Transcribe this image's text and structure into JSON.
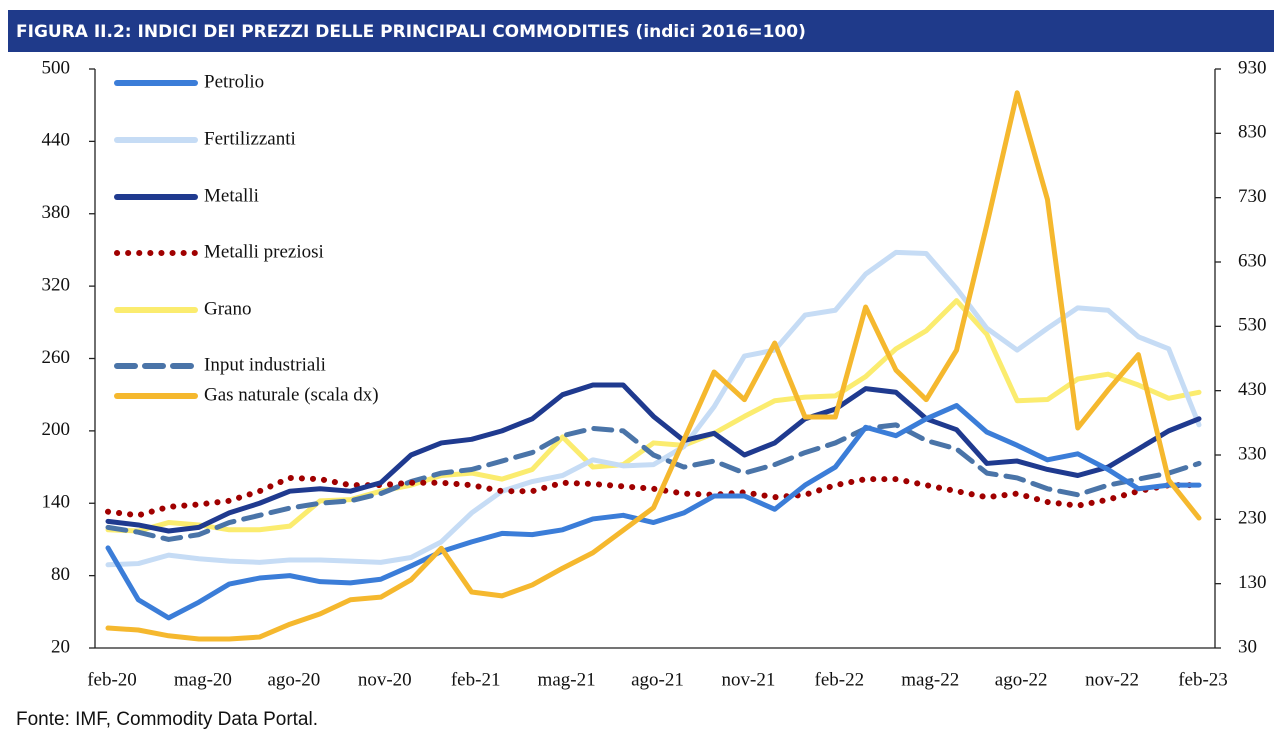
{
  "chart_data": {
    "type": "line",
    "title": "FIGURA II.2: INDICI DEI PREZZI DELLE PRINCIPALI COMMODITIES (indici 2016=100)",
    "source": "Fonte: IMF, Commodity Data Portal.",
    "categories": [
      "feb-20",
      null,
      null,
      "mag-20",
      null,
      null,
      "ago-20",
      null,
      null,
      "nov-20",
      null,
      null,
      "feb-21",
      null,
      null,
      "mag-21",
      null,
      null,
      "ago-21",
      null,
      null,
      "nov-21",
      null,
      null,
      "feb-22",
      null,
      null,
      "mag-22",
      null,
      null,
      "ago-22",
      null,
      null,
      "nov-22",
      null,
      null,
      "feb-23"
    ],
    "ylim": [
      20,
      500
    ],
    "yticks": [
      20,
      80,
      140,
      200,
      260,
      320,
      380,
      440,
      500
    ],
    "y2lim": [
      30,
      930
    ],
    "y2ticks": [
      30,
      130,
      230,
      330,
      430,
      530,
      630,
      730,
      830,
      930
    ],
    "series": [
      {
        "name": "Petrolio",
        "color": "#3b7dd8",
        "style": "solid",
        "values": [
          103,
          60,
          45,
          58,
          73,
          78,
          80,
          75,
          74,
          77,
          88,
          100,
          108,
          115,
          114,
          118,
          127,
          130,
          124,
          132,
          146,
          146,
          135,
          155,
          170,
          203,
          196,
          210,
          221,
          199,
          188,
          176,
          181,
          168,
          152,
          155,
          155
        ]
      },
      {
        "name": "Fertilizzanti",
        "color": "#c6dcf5",
        "style": "solid",
        "values": [
          89,
          90,
          97,
          94,
          92,
          91,
          93,
          93,
          92,
          91,
          95,
          108,
          132,
          150,
          158,
          163,
          176,
          171,
          172,
          187,
          220,
          262,
          267,
          296,
          300,
          330,
          348,
          347,
          318,
          285,
          267,
          285,
          302,
          300,
          278,
          268,
          205
        ]
      },
      {
        "name": "Metalli",
        "color": "#1f3a8f",
        "style": "solid",
        "values": [
          125,
          122,
          117,
          120,
          132,
          140,
          150,
          152,
          150,
          157,
          180,
          190,
          193,
          200,
          210,
          230,
          238,
          238,
          212,
          192,
          198,
          180,
          190,
          210,
          218,
          235,
          232,
          210,
          201,
          173,
          175,
          168,
          163,
          170,
          185,
          200,
          210
        ]
      },
      {
        "name": "Metalli preziosi",
        "color": "#a00000",
        "style": "dotted",
        "values": [
          133,
          130,
          137,
          139,
          142,
          150,
          161,
          160,
          155,
          155,
          157,
          157,
          155,
          150,
          150,
          157,
          156,
          154,
          152,
          148,
          147,
          149,
          145,
          147,
          155,
          160,
          160,
          155,
          150,
          145,
          148,
          141,
          138,
          143,
          150,
          155,
          155
        ]
      },
      {
        "name": "Grano",
        "color": "#fbec6f",
        "style": "solid",
        "values": [
          118,
          117,
          124,
          122,
          118,
          118,
          121,
          142,
          143,
          150,
          155,
          163,
          165,
          160,
          168,
          195,
          170,
          172,
          190,
          188,
          198,
          212,
          225,
          228,
          229,
          245,
          268,
          283,
          308,
          280,
          225,
          226,
          243,
          247,
          238,
          227,
          232
        ]
      },
      {
        "name": "Input industriali",
        "color": "#4a74a8",
        "style": "dashed",
        "values": [
          120,
          116,
          110,
          114,
          124,
          130,
          136,
          140,
          142,
          148,
          158,
          165,
          168,
          175,
          182,
          196,
          202,
          200,
          180,
          170,
          175,
          165,
          172,
          182,
          190,
          202,
          205,
          192,
          185,
          165,
          161,
          152,
          147,
          155,
          160,
          165,
          173
        ]
      },
      {
        "name": "Gas naturale (scala dx)",
        "color": "#f5b82e",
        "style": "solid",
        "axis": "y2",
        "values": [
          61,
          58,
          49,
          44,
          44,
          47,
          67,
          83,
          105,
          109,
          136,
          185,
          117,
          111,
          128,
          154,
          178,
          213,
          248,
          353,
          459,
          416,
          504,
          389,
          389,
          560,
          462,
          416,
          493,
          688,
          893,
          727,
          372,
          431,
          486,
          291,
          232
        ]
      }
    ]
  }
}
